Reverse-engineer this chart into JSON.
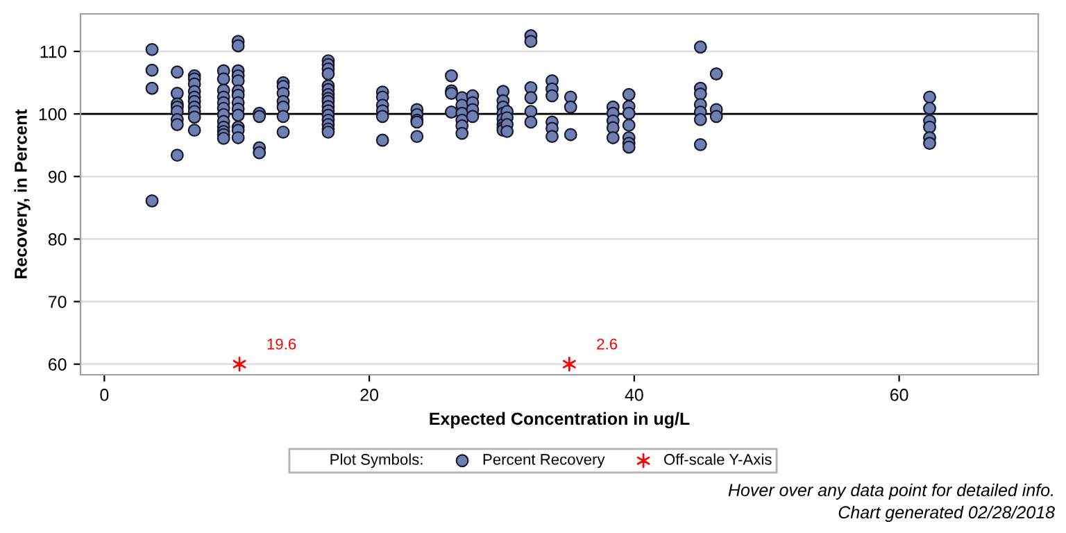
{
  "chart_data": {
    "type": "scatter",
    "xlabel": "Expected Concentration in ug/L",
    "ylabel": "Recovery, in Percent",
    "xlim": [
      -1.8,
      70.5
    ],
    "xticks": [
      0,
      20,
      40,
      60
    ],
    "ylim": [
      58.3,
      116
    ],
    "yticks": [
      60,
      70,
      80,
      90,
      100,
      110
    ],
    "grid": "y",
    "legend": "bottom",
    "legend_title": "Plot Symbols:",
    "ref_lines": [
      {
        "axis": "y",
        "value": 100,
        "color": "#000000",
        "line_style": "solid"
      }
    ],
    "series": [
      {
        "name": "Percent Recovery",
        "color": "#6f7eb3",
        "marker": "circle",
        "x": [
          3.6,
          3.6,
          3.6,
          3.6,
          5.5,
          5.5,
          5.5,
          5.5,
          5.5,
          5.5,
          5.5,
          5.5,
          6.8,
          6.8,
          6.8,
          6.8,
          6.8,
          6.8,
          6.8,
          6.8,
          6.8,
          6.8,
          9.0,
          9.0,
          9.0,
          9.0,
          9.0,
          9.0,
          9.0,
          9.0,
          9.0,
          9.0,
          9.0,
          9.0,
          10.1,
          10.1,
          10.1,
          10.1,
          10.1,
          10.1,
          10.1,
          10.1,
          10.1,
          10.1,
          10.1,
          10.1,
          10.1,
          11.7,
          11.7,
          11.7,
          11.7,
          13.5,
          13.5,
          13.5,
          13.5,
          13.5,
          13.5,
          13.5,
          16.9,
          16.9,
          16.9,
          16.9,
          16.9,
          16.9,
          16.9,
          16.9,
          16.9,
          16.9,
          16.9,
          16.9,
          16.9,
          16.9,
          16.9,
          16.9,
          21.0,
          21.0,
          21.0,
          21.0,
          21.0,
          21.0,
          23.6,
          23.6,
          23.6,
          23.6,
          23.6,
          26.2,
          26.2,
          26.2,
          26.2,
          27.0,
          27.0,
          27.0,
          27.0,
          27.0,
          27.0,
          27.8,
          27.8,
          27.8,
          27.8,
          30.1,
          30.1,
          30.1,
          30.1,
          30.1,
          30.1,
          30.1,
          30.1,
          30.4,
          30.4,
          30.4,
          30.4,
          32.2,
          32.2,
          32.2,
          32.2,
          32.2,
          32.2,
          33.8,
          33.8,
          33.8,
          33.8,
          33.8,
          33.8,
          35.2,
          35.2,
          35.2,
          38.4,
          38.4,
          38.4,
          38.4,
          38.4,
          39.6,
          39.6,
          39.6,
          39.6,
          39.6,
          39.6,
          39.6,
          45.0,
          45.0,
          45.0,
          45.0,
          45.0,
          45.0,
          45.0,
          46.2,
          46.2,
          46.2,
          62.3,
          62.3,
          62.3,
          62.3,
          62.3,
          62.3
        ],
        "values": [
          110.3,
          107,
          104.1,
          86.1,
          106.7,
          103.3,
          101.6,
          101.1,
          100.4,
          99.1,
          98.3,
          93.4,
          106.1,
          105.6,
          104.8,
          103.6,
          102.7,
          102,
          101.1,
          100.4,
          99.5,
          97.4,
          106.9,
          105.6,
          103.8,
          102.7,
          101.8,
          100.9,
          99.9,
          98.8,
          97.9,
          97.2,
          96.7,
          96.1,
          111.6,
          110.9,
          106.9,
          106.1,
          105.3,
          103.7,
          103,
          101.8,
          100.8,
          99.8,
          97.9,
          97.4,
          96.2,
          100.1,
          99.6,
          94.6,
          93.8,
          105,
          104.4,
          103.3,
          102,
          101.1,
          99.6,
          97.1,
          108.5,
          107.9,
          107.2,
          106.4,
          104.5,
          103.9,
          103.1,
          102.5,
          102,
          101.2,
          100.5,
          99.8,
          99,
          98.3,
          97.6,
          97.1,
          103.5,
          102.7,
          101.4,
          100.5,
          99.6,
          95.8,
          100.7,
          99.9,
          99,
          98.7,
          96.4,
          106.1,
          103.7,
          103.3,
          100.3,
          102.6,
          101.4,
          100.1,
          99,
          98.1,
          96.9,
          102.9,
          101.8,
          100.7,
          99.6,
          103.6,
          102.1,
          101.1,
          100.1,
          99.2,
          98.3,
          97.8,
          97.4,
          100.4,
          99.4,
          98.3,
          97.2,
          112.5,
          111.6,
          104.2,
          102.6,
          100.4,
          98.7,
          105.3,
          104,
          102.9,
          98.7,
          97.7,
          96.4,
          102.7,
          101.1,
          96.7,
          101.1,
          100.1,
          98.9,
          97.8,
          96.2,
          103.1,
          101.2,
          100.1,
          98.2,
          96.2,
          95.3,
          94.7,
          110.7,
          104.1,
          103.2,
          101.5,
          100.3,
          99.1,
          95.1,
          106.4,
          100.7,
          99.6,
          102.7,
          100.9,
          98.9,
          97.9,
          96.2,
          95.3
        ]
      },
      {
        "name": "Off-scale Y-Axis",
        "color": "#ff0000",
        "marker": "cross",
        "x": [
          10.2,
          35.1
        ],
        "values": [
          60,
          60
        ]
      }
    ],
    "annotations": [
      {
        "text": "19.6",
        "x": 10.2,
        "y": 60
      },
      {
        "text": "2.6",
        "x": 35.1,
        "y": 60
      },
      "Hover over any data point for detailed info.",
      "Chart generated 02/28/2018"
    ]
  }
}
